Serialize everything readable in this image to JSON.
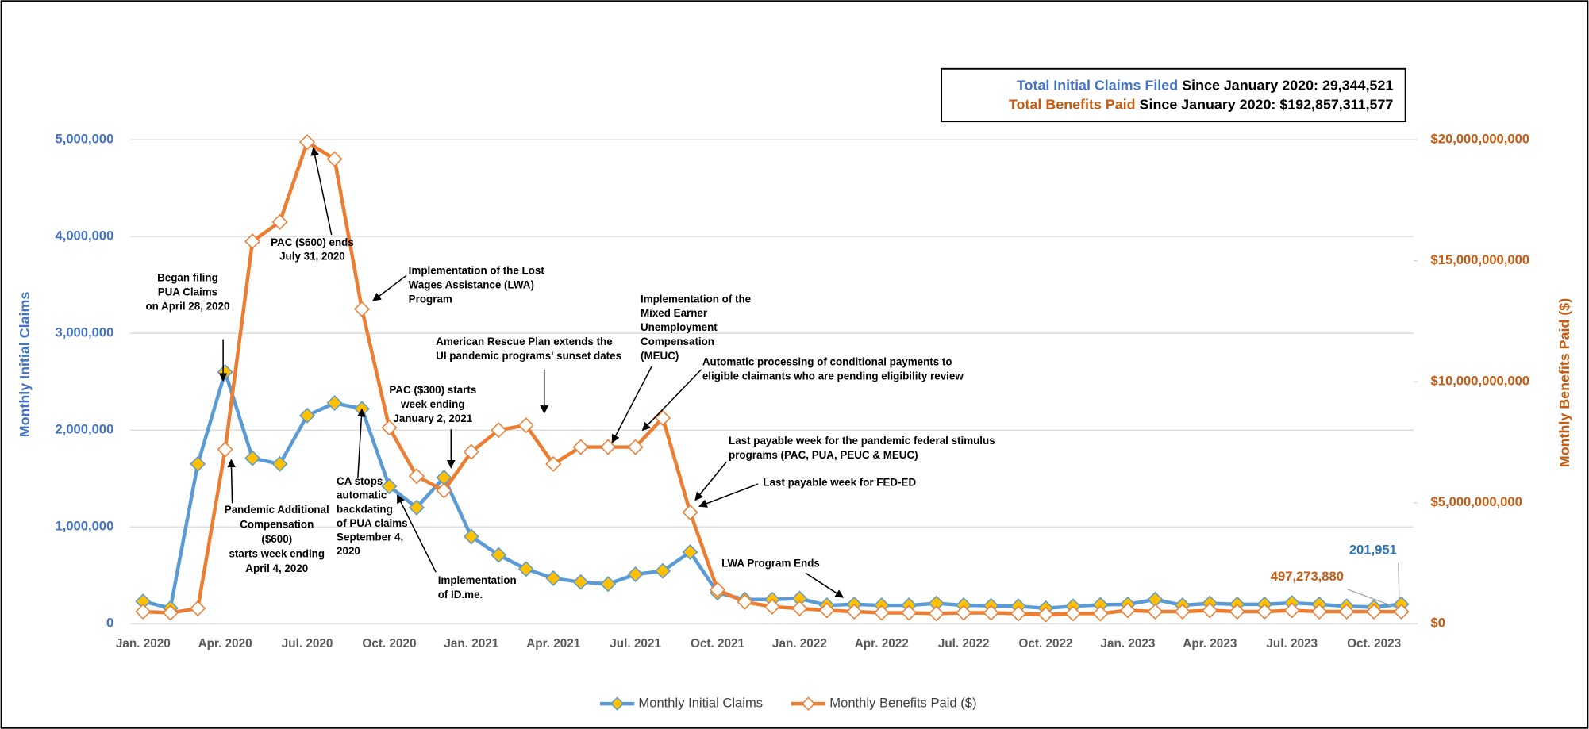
{
  "chart_data": {
    "type": "line",
    "categories": [
      "Jan. 2020",
      null,
      null,
      "Apr. 2020",
      null,
      null,
      "Jul. 2020",
      null,
      null,
      "Oct. 2020",
      null,
      null,
      "Jan. 2021",
      null,
      null,
      "Apr. 2021",
      null,
      null,
      "Jul. 2021",
      null,
      null,
      "Oct. 2021",
      null,
      null,
      "Jan. 2022",
      null,
      null,
      "Apr. 2022",
      null,
      null,
      "Jul. 2022",
      null,
      null,
      "Oct. 2022",
      null,
      null,
      "Jan. 2023",
      null,
      null,
      "Apr. 2023",
      null,
      null,
      "Jul. 2023",
      null,
      null,
      "Oct. 2023",
      null
    ],
    "series": [
      {
        "name": "Monthly Initial Claims",
        "color": "#5b9bd5",
        "marker_color": "#ffc000",
        "axis": "y",
        "values": [
          230000,
          160000,
          1650000,
          2600000,
          1710000,
          1650000,
          2150000,
          2280000,
          2220000,
          1420000,
          1200000,
          1510000,
          900000,
          710000,
          565000,
          470000,
          430000,
          410000,
          510000,
          545000,
          740000,
          320000,
          250000,
          250000,
          260000,
          190000,
          200000,
          190000,
          190000,
          210000,
          190000,
          185000,
          180000,
          160000,
          180000,
          195000,
          200000,
          250000,
          190000,
          210000,
          200000,
          200000,
          215000,
          200000,
          180000,
          170000,
          201951
        ],
        "value_labels": [
          null,
          null,
          null,
          null,
          null,
          null,
          null,
          null,
          null,
          null,
          null,
          null,
          null,
          null,
          null,
          null,
          null,
          null,
          null,
          null,
          null,
          null,
          null,
          null,
          null,
          null,
          null,
          null,
          null,
          null,
          null,
          null,
          null,
          null,
          null,
          null,
          null,
          null,
          null,
          null,
          null,
          null,
          null,
          null,
          null,
          null,
          "201,951"
        ]
      },
      {
        "name": "Monthly Benefits Paid ($)",
        "color": "#ed7d31",
        "marker_color": "#ffffff",
        "axis": "y2",
        "values": [
          500000000,
          450000000,
          630000000,
          7200000000,
          15800000000,
          16600000000,
          19900000000,
          19200000000,
          13000000000,
          8100000000,
          6100000000,
          5500000000,
          7100000000,
          8000000000,
          8200000000,
          6600000000,
          7300000000,
          7300000000,
          7300000000,
          8500000000,
          4600000000,
          1400000000,
          900000000,
          700000000,
          630000000,
          550000000,
          500000000,
          450000000,
          450000000,
          420000000,
          450000000,
          450000000,
          420000000,
          380000000,
          420000000,
          420000000,
          550000000,
          500000000,
          500000000,
          550000000,
          500000000,
          500000000,
          550000000,
          500000000,
          500000000,
          500000000,
          497273880
        ],
        "value_labels": [
          null,
          null,
          null,
          null,
          null,
          null,
          null,
          null,
          null,
          null,
          null,
          null,
          null,
          null,
          null,
          null,
          null,
          null,
          null,
          null,
          null,
          null,
          null,
          null,
          null,
          null,
          null,
          null,
          null,
          null,
          null,
          null,
          null,
          null,
          null,
          null,
          null,
          null,
          null,
          null,
          null,
          null,
          null,
          null,
          null,
          null,
          "497,273,880"
        ]
      }
    ],
    "y_label": "Monthly Initial Claims",
    "y2_label": "Monthly Benefits Paid ($)",
    "ylim": [
      0,
      5000000
    ],
    "yticks": [
      0,
      {
        "value": 1000000,
        "label": "1,000,000"
      },
      {
        "value": 2000000,
        "label": "2,000,000"
      },
      {
        "value": 3000000,
        "label": "3,000,000"
      },
      {
        "value": 4000000,
        "label": "4,000,000"
      },
      {
        "value": 5000000,
        "label": "5,000,000"
      }
    ],
    "y2lim": [
      0,
      20000000000
    ],
    "y2ticks": [
      {
        "value": 0,
        "label": "$0"
      },
      {
        "value": 5000000000,
        "label": "$5,000,000,000"
      },
      {
        "value": 10000000000,
        "label": "$10,000,000,000"
      },
      {
        "value": 15000000000,
        "label": "$15,000,000,000"
      },
      {
        "value": 20000000000,
        "label": "$20,000,000,000"
      }
    ],
    "grid": true,
    "legend": "bottom",
    "summary": {
      "claims_name": "Total Initial Claims Filed",
      "claims_text": "Since January 2020: 29,344,521",
      "benefits_name": "Total Benefits Paid",
      "benefits_text": "Since January 2020: $192,857,311,577"
    },
    "annotations": [
      {
        "lines": [
          "Began filing",
          "PUA Claims",
          "on April 28, 2020"
        ]
      },
      {
        "lines": [
          "PAC ($600) ends",
          "July 31, 2020"
        ]
      },
      {
        "lines": [
          "Implementation of the Lost",
          "Wages Assistance (LWA)",
          "Program"
        ]
      },
      {
        "lines": [
          "American Rescue Plan extends the",
          "UI pandemic programs' sunset dates"
        ]
      },
      {
        "lines": [
          "Implementation of the",
          "Mixed Earner",
          "Unemployment",
          "Compensation",
          "(MEUC)"
        ]
      },
      {
        "lines": [
          "Automatic processing of conditional payments to",
          "eligible claimants who are pending eligibility review"
        ]
      },
      {
        "lines": [
          "PAC ($300) starts",
          "week ending",
          "January 2, 2021"
        ]
      },
      {
        "lines": [
          "Last payable week for the pandemic federal stimulus",
          "programs (PAC, PUA, PEUC & MEUC)"
        ]
      },
      {
        "lines": [
          "Last payable week for FED-ED"
        ]
      },
      {
        "lines": [
          "CA stops",
          "automatic",
          "backdating",
          "of PUA claims",
          "September 4,",
          "2020"
        ]
      },
      {
        "lines": [
          "Pandemic Additional",
          "Compensation",
          "($600)",
          "starts week ending",
          "April 4, 2020"
        ]
      },
      {
        "lines": [
          "Implementation",
          "of ID.me."
        ]
      },
      {
        "lines": [
          "LWA Program Ends"
        ]
      }
    ]
  }
}
